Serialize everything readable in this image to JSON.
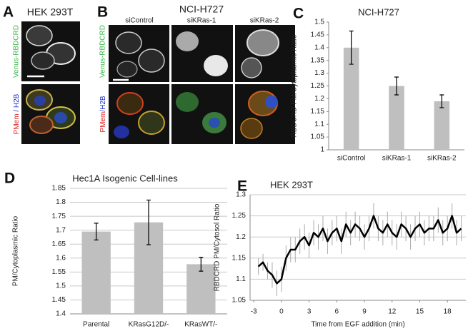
{
  "panels": {
    "A": {
      "letter": "A",
      "title": "HEK 293T",
      "top_label": "Venus-RBDCRD",
      "bottom_label": [
        "PMem",
        " / H2B"
      ]
    },
    "B": {
      "letter": "B",
      "title": "NCI-H727",
      "columns": [
        "siControl",
        "siKRas-1",
        "siKRas-2"
      ],
      "top_label": "Venus-RBDCRD",
      "bottom_label": [
        "PMem",
        "/H2B"
      ]
    },
    "C": {
      "letter": "C"
    },
    "D": {
      "letter": "D"
    },
    "E": {
      "letter": "E"
    }
  },
  "chart_data": [
    {
      "type": "bar",
      "title": "NCI-H727",
      "y_label": "RBDCRD PM/Cytoplasmic Ratio",
      "categories": [
        "siControl",
        "siKRas-1",
        "siKRas-2"
      ],
      "values": [
        1.4,
        1.25,
        1.19
      ],
      "errors": [
        0.065,
        0.035,
        0.025
      ],
      "color": "#bfbfbf",
      "ylim": [
        1,
        1.5
      ],
      "yticks": [
        1,
        1.05,
        1.1,
        1.15,
        1.2,
        1.25,
        1.3,
        1.35,
        1.4,
        1.45,
        1.5
      ],
      "grid": false
    },
    {
      "type": "bar",
      "title": "Hec1A Isogenic Cell-lines",
      "y_label": "PM/Cytoplasmic Ratio",
      "categories": [
        "Parental",
        "KRasG12D/-",
        "KRasWT/-"
      ],
      "values": [
        1.695,
        1.728,
        1.578
      ],
      "errors": [
        0.03,
        0.08,
        0.025
      ],
      "color": "#bfbfbf",
      "ylim": [
        1.4,
        1.85
      ],
      "yticks": [
        1.4,
        1.45,
        1.5,
        1.55,
        1.6,
        1.65,
        1.7,
        1.75,
        1.8,
        1.85
      ],
      "grid": true
    },
    {
      "type": "line",
      "title": "HEK 293T",
      "y_label": "RBDCRD PM/Cytosol Ratio",
      "x_label": "Time from EGF addition (min)",
      "x": [
        -2.5,
        -2,
        -1.5,
        -1,
        -0.5,
        0,
        0.5,
        1,
        1.5,
        2,
        2.5,
        3,
        3.5,
        4,
        4.5,
        5,
        5.5,
        6,
        6.5,
        7,
        7.5,
        8,
        8.5,
        9,
        9.5,
        10,
        10.5,
        11,
        11.5,
        12,
        12.5,
        13,
        13.5,
        14,
        14.5,
        15,
        15.5,
        16,
        16.5,
        17,
        17.5,
        18,
        18.5,
        19,
        19.5
      ],
      "values": [
        1.13,
        1.14,
        1.12,
        1.11,
        1.09,
        1.1,
        1.15,
        1.17,
        1.17,
        1.19,
        1.2,
        1.18,
        1.21,
        1.2,
        1.22,
        1.19,
        1.21,
        1.22,
        1.19,
        1.23,
        1.21,
        1.23,
        1.22,
        1.2,
        1.22,
        1.25,
        1.22,
        1.21,
        1.23,
        1.21,
        1.2,
        1.23,
        1.22,
        1.2,
        1.22,
        1.23,
        1.21,
        1.22,
        1.22,
        1.24,
        1.21,
        1.22,
        1.25,
        1.21,
        1.22
      ],
      "errors": [
        0.02,
        0.02,
        0.02,
        0.03,
        0.03,
        0.03,
        0.03,
        0.03,
        0.03,
        0.03,
        0.03,
        0.03,
        0.03,
        0.03,
        0.03,
        0.03,
        0.03,
        0.03,
        0.03,
        0.03,
        0.03,
        0.03,
        0.03,
        0.03,
        0.03,
        0.03,
        0.03,
        0.03,
        0.03,
        0.03,
        0.03,
        0.03,
        0.03,
        0.03,
        0.03,
        0.03,
        0.03,
        0.03,
        0.03,
        0.03,
        0.03,
        0.03,
        0.03,
        0.03,
        0.03
      ],
      "color": "#000000",
      "error_color": "#aaaaaa",
      "xlim": [
        -3.4,
        20
      ],
      "xticks": [
        -3,
        0,
        3,
        6,
        9,
        12,
        15,
        18
      ],
      "ylim": [
        1.05,
        1.3
      ],
      "yticks": [
        1.05,
        1.1,
        1.15,
        1.2,
        1.25,
        1.3
      ],
      "grid": true
    }
  ]
}
